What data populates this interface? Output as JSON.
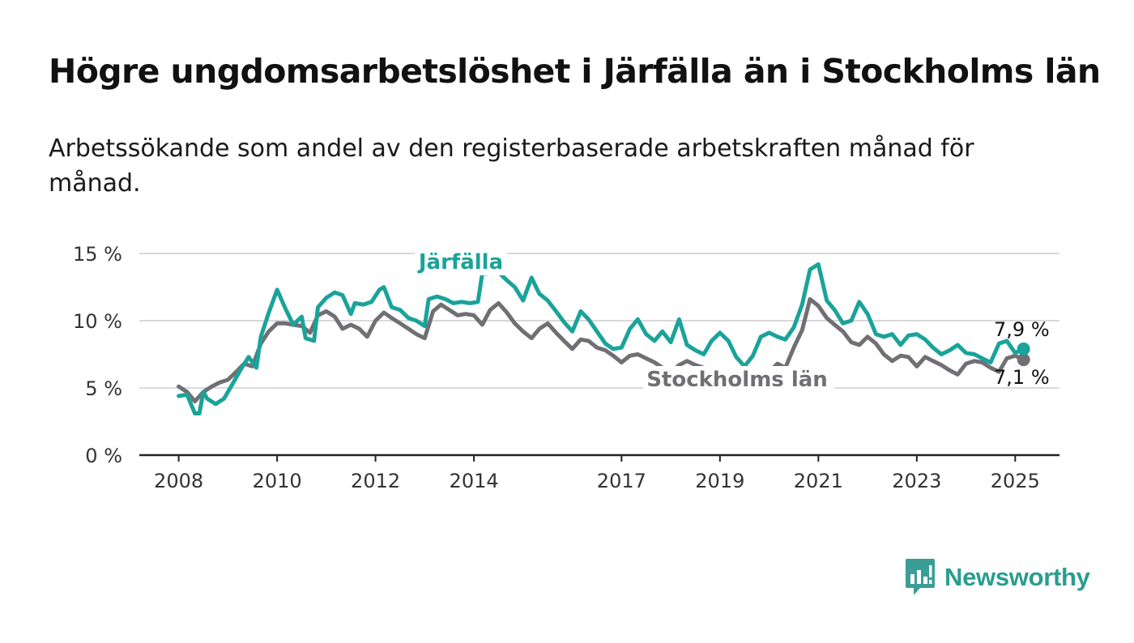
{
  "header": {
    "title": "Högre ungdomsarbetslöshet i Järfälla än i Stockholms län",
    "subtitle": "Arbetssökande som andel av den registerbaserade arbetskraften månad för månad."
  },
  "brand": {
    "name": "Newsworthy",
    "icon": "bar-chart-speech-icon",
    "color": "#3a9e96"
  },
  "chart_data": {
    "type": "line",
    "title": "Högre ungdomsarbetslöshet i Järfälla än i Stockholms län",
    "subtitle": "Arbetssökande som andel av den registerbaserade arbetskraften månad för månad.",
    "y_ticks": [
      "0 %",
      "5 %",
      "10 %",
      "15 %"
    ],
    "y_tick_values": [
      0,
      5,
      10,
      15
    ],
    "x_ticks": [
      "2008",
      "2010",
      "2012",
      "2014",
      "2017",
      "2019",
      "2021",
      "2023",
      "2025"
    ],
    "x_tick_values": [
      2008.0,
      2010.0,
      2012.0,
      2014.0,
      2017.0,
      2019.0,
      2021.0,
      2023.0,
      2025.0
    ],
    "xlim": [
      2007.2,
      2025.9
    ],
    "ylim": [
      0,
      15
    ],
    "grid": "horizontal",
    "series": [
      {
        "name": "Järfälla",
        "color": "#1aa39a",
        "end_label": "7,9 %",
        "points": [
          [
            2008.0,
            4.4
          ],
          [
            2008.17,
            4.5
          ],
          [
            2008.33,
            3.1
          ],
          [
            2008.42,
            3.1
          ],
          [
            2008.5,
            4.7
          ],
          [
            2008.58,
            4.2
          ],
          [
            2008.75,
            3.8
          ],
          [
            2008.92,
            4.2
          ],
          [
            2009.08,
            5.2
          ],
          [
            2009.25,
            6.3
          ],
          [
            2009.42,
            7.3
          ],
          [
            2009.58,
            6.5
          ],
          [
            2009.67,
            8.8
          ],
          [
            2009.83,
            10.6
          ],
          [
            2010.0,
            12.3
          ],
          [
            2010.17,
            10.9
          ],
          [
            2010.33,
            9.7
          ],
          [
            2010.5,
            10.3
          ],
          [
            2010.58,
            8.7
          ],
          [
            2010.75,
            8.5
          ],
          [
            2010.83,
            11.0
          ],
          [
            2011.0,
            11.7
          ],
          [
            2011.17,
            12.1
          ],
          [
            2011.33,
            11.9
          ],
          [
            2011.5,
            10.5
          ],
          [
            2011.58,
            11.3
          ],
          [
            2011.75,
            11.2
          ],
          [
            2011.92,
            11.4
          ],
          [
            2012.08,
            12.3
          ],
          [
            2012.17,
            12.5
          ],
          [
            2012.33,
            11.0
          ],
          [
            2012.5,
            10.8
          ],
          [
            2012.67,
            10.2
          ],
          [
            2012.83,
            10.0
          ],
          [
            2013.0,
            9.6
          ],
          [
            2013.08,
            11.6
          ],
          [
            2013.25,
            11.8
          ],
          [
            2013.42,
            11.6
          ],
          [
            2013.58,
            11.3
          ],
          [
            2013.75,
            11.4
          ],
          [
            2013.92,
            11.3
          ],
          [
            2014.08,
            11.4
          ],
          [
            2014.17,
            13.5
          ],
          [
            2014.25,
            13.5
          ],
          [
            2014.5,
            13.6
          ],
          [
            2014.67,
            13.0
          ],
          [
            2014.83,
            12.5
          ],
          [
            2015.0,
            11.5
          ],
          [
            2015.17,
            13.2
          ],
          [
            2015.33,
            12.0
          ],
          [
            2015.5,
            11.5
          ],
          [
            2015.67,
            10.7
          ],
          [
            2015.83,
            9.9
          ],
          [
            2016.0,
            9.2
          ],
          [
            2016.17,
            10.7
          ],
          [
            2016.33,
            10.1
          ],
          [
            2016.5,
            9.2
          ],
          [
            2016.67,
            8.3
          ],
          [
            2016.83,
            7.9
          ],
          [
            2017.0,
            8.0
          ],
          [
            2017.17,
            9.4
          ],
          [
            2017.33,
            10.1
          ],
          [
            2017.5,
            9.0
          ],
          [
            2017.67,
            8.5
          ],
          [
            2017.83,
            9.2
          ],
          [
            2018.0,
            8.4
          ],
          [
            2018.17,
            10.1
          ],
          [
            2018.33,
            8.2
          ],
          [
            2018.5,
            7.8
          ],
          [
            2018.67,
            7.5
          ],
          [
            2018.83,
            8.5
          ],
          [
            2019.0,
            9.1
          ],
          [
            2019.17,
            8.5
          ],
          [
            2019.33,
            7.3
          ],
          [
            2019.5,
            6.6
          ],
          [
            2019.67,
            7.4
          ],
          [
            2019.83,
            8.8
          ],
          [
            2020.0,
            9.1
          ],
          [
            2020.17,
            8.8
          ],
          [
            2020.33,
            8.6
          ],
          [
            2020.5,
            9.5
          ],
          [
            2020.67,
            11.2
          ],
          [
            2020.83,
            13.8
          ],
          [
            2021.0,
            14.2
          ],
          [
            2021.17,
            11.5
          ],
          [
            2021.33,
            10.8
          ],
          [
            2021.5,
            9.8
          ],
          [
            2021.67,
            10.0
          ],
          [
            2021.83,
            11.4
          ],
          [
            2022.0,
            10.5
          ],
          [
            2022.17,
            9.0
          ],
          [
            2022.33,
            8.8
          ],
          [
            2022.5,
            9.0
          ],
          [
            2022.67,
            8.2
          ],
          [
            2022.83,
            8.9
          ],
          [
            2023.0,
            9.0
          ],
          [
            2023.17,
            8.6
          ],
          [
            2023.33,
            8.0
          ],
          [
            2023.5,
            7.5
          ],
          [
            2023.67,
            7.8
          ],
          [
            2023.83,
            8.2
          ],
          [
            2024.0,
            7.6
          ],
          [
            2024.17,
            7.5
          ],
          [
            2024.33,
            7.2
          ],
          [
            2024.5,
            6.9
          ],
          [
            2024.67,
            8.3
          ],
          [
            2024.83,
            8.5
          ],
          [
            2025.0,
            7.6
          ],
          [
            2025.17,
            7.9
          ]
        ]
      },
      {
        "name": "Stockholms län",
        "color": "#6f6f74",
        "end_label": "7,1 %",
        "points": [
          [
            2008.0,
            5.1
          ],
          [
            2008.17,
            4.7
          ],
          [
            2008.33,
            4.0
          ],
          [
            2008.5,
            4.7
          ],
          [
            2008.67,
            5.1
          ],
          [
            2008.83,
            5.4
          ],
          [
            2009.0,
            5.6
          ],
          [
            2009.17,
            6.2
          ],
          [
            2009.33,
            6.8
          ],
          [
            2009.5,
            6.6
          ],
          [
            2009.67,
            8.3
          ],
          [
            2009.83,
            9.2
          ],
          [
            2010.0,
            9.8
          ],
          [
            2010.17,
            9.8
          ],
          [
            2010.33,
            9.7
          ],
          [
            2010.5,
            9.6
          ],
          [
            2010.67,
            9.1
          ],
          [
            2010.83,
            10.4
          ],
          [
            2011.0,
            10.7
          ],
          [
            2011.17,
            10.3
          ],
          [
            2011.33,
            9.4
          ],
          [
            2011.5,
            9.7
          ],
          [
            2011.67,
            9.4
          ],
          [
            2011.83,
            8.8
          ],
          [
            2012.0,
            10.0
          ],
          [
            2012.17,
            10.6
          ],
          [
            2012.33,
            10.2
          ],
          [
            2012.5,
            9.8
          ],
          [
            2012.67,
            9.4
          ],
          [
            2012.83,
            9.0
          ],
          [
            2013.0,
            8.7
          ],
          [
            2013.17,
            10.7
          ],
          [
            2013.33,
            11.2
          ],
          [
            2013.5,
            10.8
          ],
          [
            2013.67,
            10.4
          ],
          [
            2013.83,
            10.5
          ],
          [
            2014.0,
            10.4
          ],
          [
            2014.17,
            9.7
          ],
          [
            2014.33,
            10.8
          ],
          [
            2014.5,
            11.3
          ],
          [
            2014.67,
            10.6
          ],
          [
            2014.83,
            9.8
          ],
          [
            2015.0,
            9.2
          ],
          [
            2015.17,
            8.7
          ],
          [
            2015.33,
            9.4
          ],
          [
            2015.5,
            9.8
          ],
          [
            2015.67,
            9.1
          ],
          [
            2015.83,
            8.5
          ],
          [
            2016.0,
            7.9
          ],
          [
            2016.17,
            8.6
          ],
          [
            2016.33,
            8.5
          ],
          [
            2016.5,
            8.0
          ],
          [
            2016.67,
            7.8
          ],
          [
            2016.83,
            7.4
          ],
          [
            2017.0,
            6.9
          ],
          [
            2017.17,
            7.4
          ],
          [
            2017.33,
            7.5
          ],
          [
            2017.5,
            7.2
          ],
          [
            2017.67,
            6.9
          ],
          [
            2017.83,
            6.5
          ],
          [
            2018.0,
            6.1
          ],
          [
            2018.17,
            6.7
          ],
          [
            2018.33,
            7.0
          ],
          [
            2018.5,
            6.7
          ],
          [
            2018.67,
            6.5
          ],
          [
            2018.83,
            6.0
          ],
          [
            2019.0,
            5.7
          ],
          [
            2019.17,
            6.2
          ],
          [
            2019.33,
            6.4
          ],
          [
            2019.5,
            6.2
          ],
          [
            2019.67,
            5.9
          ],
          [
            2019.83,
            6.3
          ],
          [
            2020.0,
            6.2
          ],
          [
            2020.17,
            6.8
          ],
          [
            2020.33,
            6.5
          ],
          [
            2020.5,
            8.0
          ],
          [
            2020.67,
            9.3
          ],
          [
            2020.83,
            11.6
          ],
          [
            2021.0,
            11.1
          ],
          [
            2021.17,
            10.2
          ],
          [
            2021.33,
            9.7
          ],
          [
            2021.5,
            9.2
          ],
          [
            2021.67,
            8.4
          ],
          [
            2021.83,
            8.2
          ],
          [
            2022.0,
            8.8
          ],
          [
            2022.17,
            8.3
          ],
          [
            2022.33,
            7.5
          ],
          [
            2022.5,
            7.0
          ],
          [
            2022.67,
            7.4
          ],
          [
            2022.83,
            7.3
          ],
          [
            2023.0,
            6.6
          ],
          [
            2023.17,
            7.3
          ],
          [
            2023.33,
            7.0
          ],
          [
            2023.5,
            6.7
          ],
          [
            2023.67,
            6.3
          ],
          [
            2023.83,
            6.0
          ],
          [
            2024.0,
            6.8
          ],
          [
            2024.17,
            7.0
          ],
          [
            2024.33,
            6.9
          ],
          [
            2024.5,
            6.5
          ],
          [
            2024.67,
            6.2
          ],
          [
            2024.83,
            7.2
          ],
          [
            2025.0,
            7.4
          ],
          [
            2025.17,
            7.1
          ]
        ]
      }
    ]
  }
}
